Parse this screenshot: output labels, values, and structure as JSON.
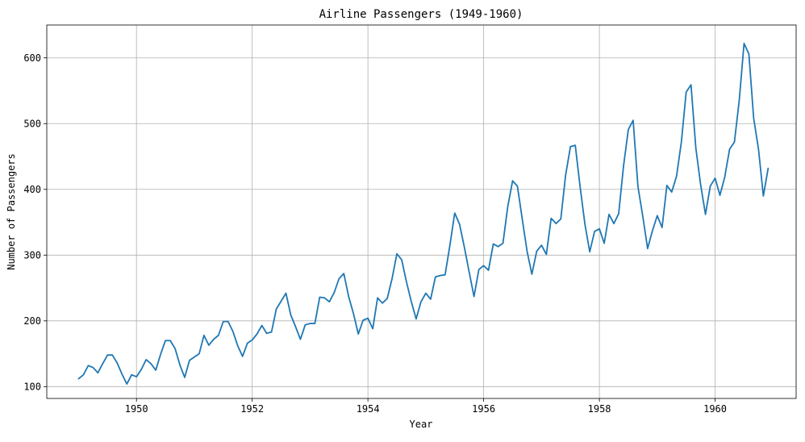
{
  "chart_data": {
    "type": "line",
    "title": "Airline Passengers (1949-1960)",
    "xlabel": "Year",
    "ylabel": "Number of Passengers",
    "xlim": [
      1948.45,
      1961.4
    ],
    "ylim": [
      82,
      650
    ],
    "x_ticks": [
      1950,
      1952,
      1954,
      1956,
      1958,
      1960
    ],
    "x_tick_labels": [
      "1950",
      "1952",
      "1954",
      "1956",
      "1958",
      "1960"
    ],
    "y_ticks": [
      100,
      200,
      300,
      400,
      500,
      600
    ],
    "y_tick_labels": [
      "100",
      "200",
      "300",
      "400",
      "500",
      "600"
    ],
    "grid": true,
    "legend": "none",
    "line_color": "#1f77b4",
    "grid_color": "#b0b0b0",
    "x_start": 1949.0,
    "x_step": 0.0833333,
    "series": [
      {
        "values": [
          112,
          118,
          132,
          129,
          121,
          135,
          148,
          148,
          136,
          119,
          104,
          118,
          115,
          126,
          141,
          135,
          125,
          149,
          170,
          170,
          158,
          133,
          114,
          140,
          145,
          150,
          178,
          163,
          172,
          178,
          199,
          199,
          184,
          162,
          146,
          166,
          171,
          180,
          193,
          181,
          183,
          218,
          230,
          242,
          209,
          191,
          172,
          194,
          196,
          196,
          236,
          235,
          229,
          243,
          264,
          272,
          237,
          211,
          180,
          201,
          204,
          188,
          235,
          227,
          234,
          264,
          302,
          293,
          259,
          229,
          203,
          229,
          242,
          233,
          267,
          269,
          270,
          315,
          364,
          347,
          312,
          274,
          237,
          278,
          284,
          277,
          317,
          313,
          318,
          374,
          413,
          405,
          355,
          306,
          271,
          306,
          315,
          301,
          356,
          348,
          355,
          422,
          465,
          467,
          404,
          347,
          305,
          336,
          340,
          318,
          362,
          348,
          363,
          435,
          491,
          505,
          404,
          359,
          310,
          337,
          360,
          342,
          406,
          396,
          420,
          472,
          548,
          559,
          463,
          407,
          362,
          405,
          417,
          391,
          419,
          461,
          472,
          535,
          622,
          606,
          508,
          461,
          390,
          432
        ]
      }
    ]
  }
}
